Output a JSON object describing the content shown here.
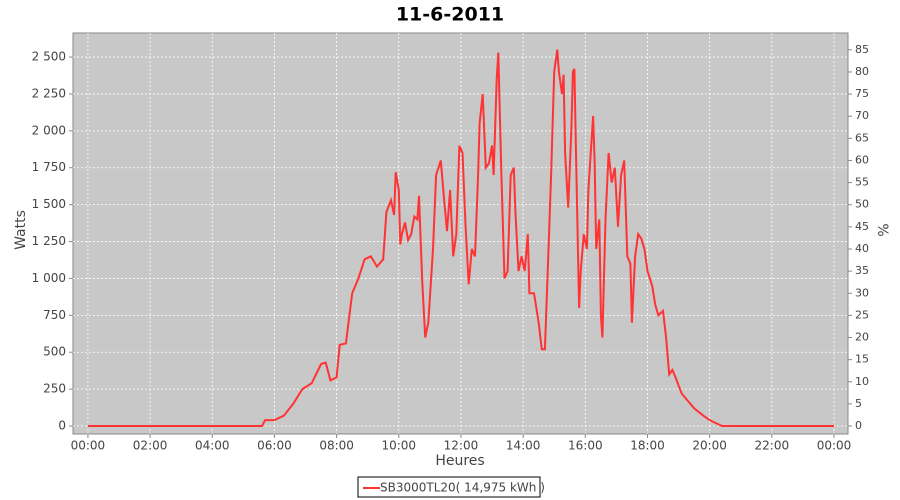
{
  "chart_data": {
    "type": "line",
    "title": "11-6-2011",
    "x_label": "Heures",
    "y_label": "Watts",
    "y2_label": "%",
    "x": [
      0,
      5.6,
      5.7,
      6.0,
      6.3,
      6.6,
      6.9,
      7.2,
      7.5,
      7.65,
      7.8,
      8.0,
      8.1,
      8.3,
      8.5,
      8.7,
      8.9,
      9.1,
      9.3,
      9.5,
      9.6,
      9.75,
      9.85,
      9.9,
      10.0,
      10.05,
      10.1,
      10.2,
      10.3,
      10.4,
      10.5,
      10.6,
      10.65,
      10.75,
      10.85,
      10.95,
      11.1,
      11.2,
      11.35,
      11.45,
      11.55,
      11.65,
      11.75,
      11.85,
      11.95,
      12.05,
      12.15,
      12.25,
      12.35,
      12.45,
      12.55,
      12.6,
      12.7,
      12.8,
      12.9,
      13.0,
      13.05,
      13.15,
      13.2,
      13.3,
      13.4,
      13.5,
      13.6,
      13.7,
      13.75,
      13.85,
      13.95,
      14.05,
      14.15,
      14.2,
      14.35,
      14.5,
      14.6,
      14.7,
      14.8,
      14.9,
      15.0,
      15.1,
      15.15,
      15.25,
      15.3,
      15.35,
      15.45,
      15.55,
      15.6,
      15.65,
      15.7,
      15.8,
      15.85,
      15.95,
      16.05,
      16.1,
      16.25,
      16.3,
      16.35,
      16.45,
      16.5,
      16.55,
      16.65,
      16.75,
      16.85,
      16.95,
      17.05,
      17.15,
      17.25,
      17.35,
      17.45,
      17.5,
      17.6,
      17.7,
      17.8,
      17.9,
      18.0,
      18.15,
      18.25,
      18.35,
      18.5,
      18.6,
      18.7,
      18.8,
      18.9,
      19.1,
      19.3,
      19.5,
      19.8,
      20.0,
      20.2,
      20.4,
      24.0
    ],
    "series": [
      {
        "name": "SB3000TL20( 14,975 kWh )",
        "color": "#ff3333",
        "values": [
          0,
          0,
          40,
          40,
          70,
          150,
          250,
          290,
          420,
          430,
          310,
          330,
          550,
          560,
          900,
          1000,
          1130,
          1150,
          1080,
          1130,
          1450,
          1530,
          1430,
          1720,
          1600,
          1230,
          1300,
          1380,
          1260,
          1300,
          1420,
          1400,
          1560,
          1000,
          600,
          700,
          1200,
          1700,
          1800,
          1550,
          1320,
          1600,
          1150,
          1300,
          1900,
          1850,
          1350,
          960,
          1200,
          1150,
          1700,
          2050,
          2250,
          1750,
          1780,
          1900,
          1700,
          2350,
          2530,
          1700,
          1000,
          1050,
          1700,
          1750,
          1450,
          1050,
          1150,
          1050,
          1300,
          900,
          900,
          700,
          520,
          520,
          1100,
          1700,
          2400,
          2550,
          2400,
          2250,
          2380,
          1850,
          1480,
          2000,
          2400,
          2420,
          1850,
          800,
          1050,
          1300,
          1200,
          1600,
          2100,
          1800,
          1200,
          1400,
          750,
          600,
          1400,
          1850,
          1650,
          1750,
          1350,
          1700,
          1800,
          1150,
          1100,
          700,
          1150,
          1300,
          1270,
          1200,
          1050,
          950,
          820,
          750,
          780,
          600,
          350,
          380,
          330,
          220,
          170,
          120,
          70,
          40,
          20,
          0,
          0
        ]
      }
    ],
    "xlim": [
      -0.48,
      24.45
    ],
    "xticks": [
      {
        "value": 0,
        "label": "00:00"
      },
      {
        "value": 2,
        "label": "02:00"
      },
      {
        "value": 4,
        "label": "04:00"
      },
      {
        "value": 6,
        "label": "06:00"
      },
      {
        "value": 8,
        "label": "08:00"
      },
      {
        "value": 10,
        "label": "10:00"
      },
      {
        "value": 12,
        "label": "12:00"
      },
      {
        "value": 14,
        "label": "14:00"
      },
      {
        "value": 16,
        "label": "16:00"
      },
      {
        "value": 18,
        "label": "18:00"
      },
      {
        "value": 20,
        "label": "20:00"
      },
      {
        "value": 22,
        "label": "22:00"
      },
      {
        "value": 24,
        "label": "00:00"
      }
    ],
    "ylim": [
      -54,
      2663
    ],
    "yticks": [
      0,
      250,
      500,
      750,
      {
        "value": 1000,
        "label": "1 000"
      },
      {
        "value": 1250,
        "label": "1 250"
      },
      {
        "value": 1500,
        "label": "1 500"
      },
      {
        "value": 1750,
        "label": "1 750"
      },
      {
        "value": 2000,
        "label": "2 000"
      },
      {
        "value": 2250,
        "label": "2 250"
      },
      {
        "value": 2500,
        "label": "2 500"
      }
    ],
    "y2lim": [
      -1.8,
      88.8
    ],
    "y2ticks": [
      0,
      5,
      10,
      15,
      20,
      25,
      30,
      35,
      40,
      45,
      50,
      55,
      60,
      65,
      70,
      75,
      80,
      85
    ],
    "grid": true,
    "legend": "bottom"
  }
}
